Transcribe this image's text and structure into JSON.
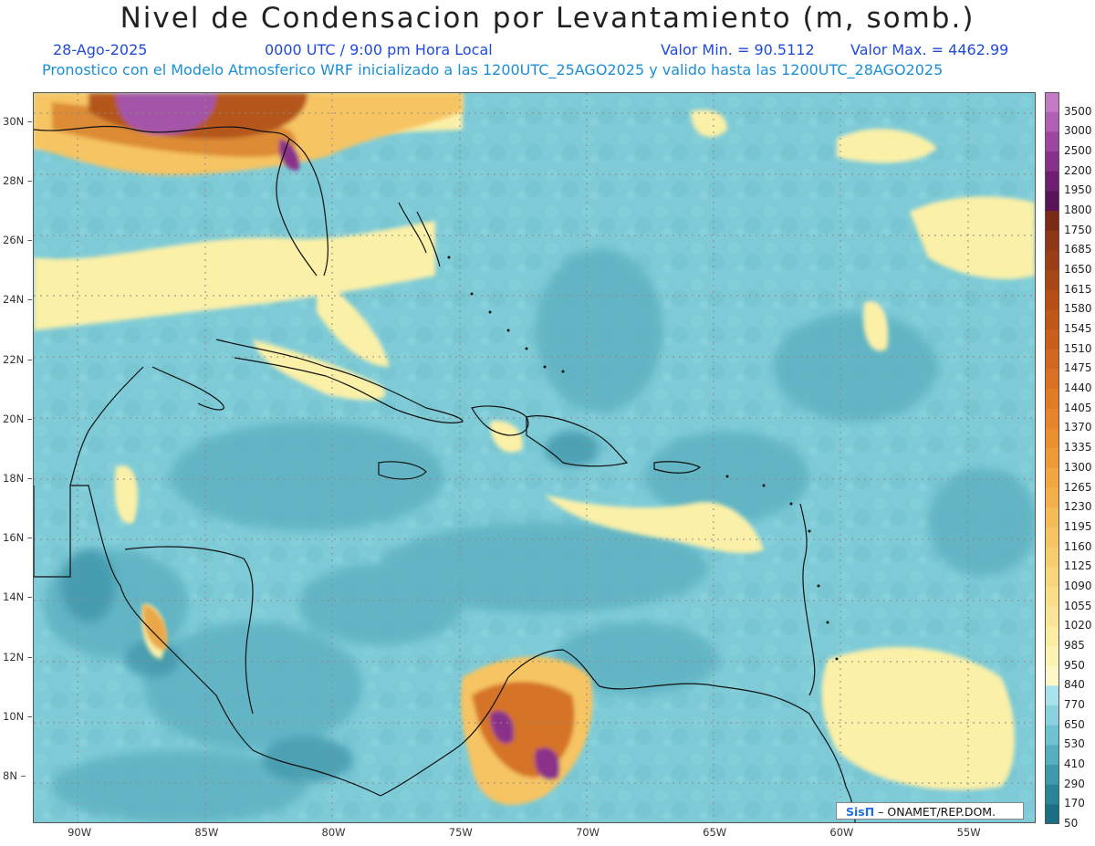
{
  "title": "Nivel de Condensacion por Levantamiento (m, somb.)",
  "subtitle": {
    "date": "28-Ago-2025",
    "time": "0000 UTC / 9:00 pm Hora Local",
    "vmin": "Valor Min. = 90.5112",
    "vmax": "Valor Max. = 4462.99",
    "forecast": "Pronostico con el Modelo Atmosferico WRF inicializado a las 1200UTC_25AGO2025 y valido hasta las  1200UTC_28AGO2025"
  },
  "map": {
    "lat_labels": [
      "30N",
      "28N",
      "26N",
      "24N",
      "22N",
      "20N",
      "18N",
      "16N",
      "14N",
      "12N",
      "10N",
      "8N"
    ],
    "lon_labels": [
      "90W",
      "85W",
      "80W",
      "75W",
      "70W",
      "65W",
      "60W",
      "55W"
    ],
    "lat_range": [
      6.5,
      31
    ],
    "lon_range": [
      -91.8,
      -52.4
    ],
    "credit_logo": "SisΠ",
    "credit_text": "– ONAMET/REP.DOM."
  },
  "colorbar": {
    "levels": [
      "3500",
      "3000",
      "2500",
      "2200",
      "1950",
      "1800",
      "1750",
      "1685",
      "1650",
      "1615",
      "1580",
      "1545",
      "1510",
      "1475",
      "1440",
      "1405",
      "1370",
      "1335",
      "1300",
      "1265",
      "1230",
      "1195",
      "1160",
      "1125",
      "1090",
      "1055",
      "1020",
      "985",
      "950",
      "840",
      "770",
      "650",
      "530",
      "410",
      "290",
      "170",
      "50"
    ],
    "colors": [
      "#c37bc4",
      "#b25fb6",
      "#9e45a0",
      "#88318a",
      "#6e1f70",
      "#591457",
      "#7b2a18",
      "#8f3617",
      "#9c3f18",
      "#a84716",
      "#b54f16",
      "#c05718",
      "#c95f1b",
      "#d2681f",
      "#db7122",
      "#e27b26",
      "#e8842b",
      "#ec8f31",
      "#ef9a38",
      "#f2a641",
      "#f4b14b",
      "#f5bb56",
      "#f6c462",
      "#f7cd6e",
      "#f8d67b",
      "#f9de88",
      "#fae596",
      "#fbeca4",
      "#fcf2b2",
      "#fdf8c8",
      "#a8e2ea",
      "#8ad3de",
      "#6fc2cf",
      "#56afbe",
      "#3f9aac",
      "#2b8599",
      "#1a6f84"
    ]
  }
}
